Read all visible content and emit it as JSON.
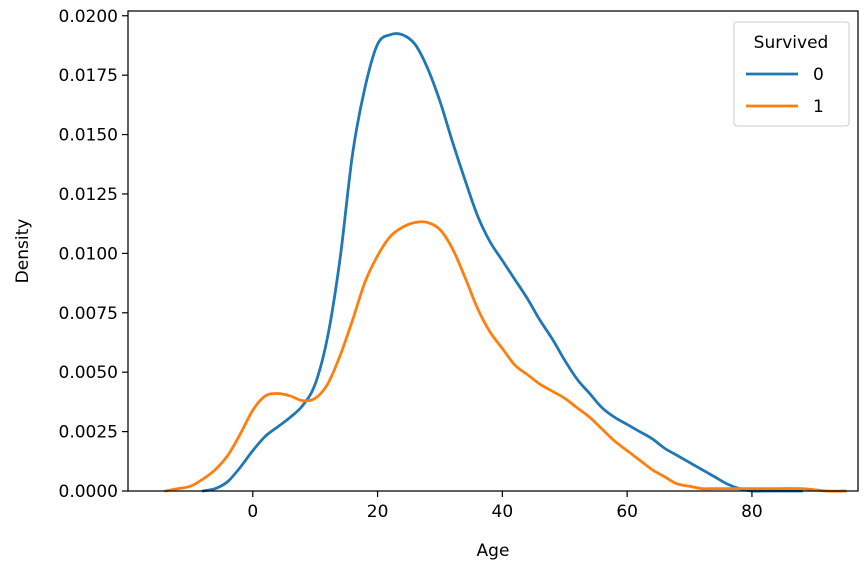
{
  "chart_data": {
    "type": "line",
    "title": "",
    "xlabel": "Age",
    "ylabel": "Density",
    "xlim": [
      -20,
      97
    ],
    "ylim": [
      0,
      0.0202
    ],
    "x_ticks": [
      0,
      20,
      40,
      60,
      80
    ],
    "x_tick_labels": [
      "0",
      "20",
      "40",
      "60",
      "80"
    ],
    "y_ticks": [
      0,
      0.0025,
      0.005,
      0.0075,
      0.01,
      0.0125,
      0.015,
      0.0175,
      0.02
    ],
    "y_tick_labels": [
      "0.0000",
      "0.0025",
      "0.0050",
      "0.0075",
      "0.0100",
      "0.0125",
      "0.0150",
      "0.0175",
      "0.0200"
    ],
    "grid": false,
    "legend": {
      "title": "Survived",
      "placement": "top-right"
    },
    "series": [
      {
        "name": "0",
        "color": "#1f77b4",
        "x": [
          -8,
          -6,
          -4,
          -2,
          0,
          2,
          4,
          6,
          8,
          10,
          12,
          14,
          16,
          18,
          20,
          22,
          24,
          26,
          28,
          30,
          32,
          34,
          36,
          38,
          40,
          42,
          44,
          46,
          48,
          50,
          52,
          54,
          56,
          58,
          60,
          62,
          64,
          66,
          68,
          70,
          72,
          74,
          76,
          78,
          80,
          82,
          85,
          88
        ],
        "values": [
          0.0,
          0.0001,
          0.0004,
          0.001,
          0.0017,
          0.0023,
          0.0027,
          0.0031,
          0.0036,
          0.0045,
          0.0065,
          0.0098,
          0.0142,
          0.017,
          0.0188,
          0.0192,
          0.0192,
          0.0188,
          0.0178,
          0.0164,
          0.0147,
          0.0131,
          0.0116,
          0.0105,
          0.0097,
          0.0089,
          0.0081,
          0.0072,
          0.0064,
          0.0055,
          0.0047,
          0.0041,
          0.0035,
          0.0031,
          0.0028,
          0.0025,
          0.0022,
          0.0018,
          0.0015,
          0.0012,
          0.0009,
          0.0006,
          0.0003,
          0.0001,
          0.0,
          0.0,
          0.0,
          0.0
        ]
      },
      {
        "name": "1",
        "color": "#ff7f0e",
        "x": [
          -14,
          -12,
          -10,
          -8,
          -6,
          -4,
          -2,
          0,
          2,
          4,
          6,
          8,
          10,
          12,
          14,
          16,
          18,
          20,
          22,
          24,
          26,
          28,
          30,
          32,
          34,
          36,
          38,
          40,
          42,
          44,
          46,
          48,
          50,
          52,
          54,
          56,
          58,
          60,
          62,
          64,
          66,
          68,
          70,
          72,
          74,
          76,
          78,
          80,
          84,
          88,
          92,
          95
        ],
        "values": [
          0.0,
          0.0001,
          0.0002,
          0.0005,
          0.0009,
          0.0015,
          0.0024,
          0.0034,
          0.004,
          0.0041,
          0.004,
          0.0038,
          0.0039,
          0.0045,
          0.0057,
          0.0072,
          0.0088,
          0.0099,
          0.0107,
          0.0111,
          0.0113,
          0.0113,
          0.011,
          0.0102,
          0.009,
          0.0077,
          0.0067,
          0.006,
          0.0053,
          0.0049,
          0.0045,
          0.0042,
          0.0039,
          0.0035,
          0.0031,
          0.0026,
          0.0021,
          0.0017,
          0.0013,
          0.0009,
          0.0006,
          0.0003,
          0.0002,
          0.0001,
          0.0001,
          0.0001,
          0.0001,
          0.0001,
          0.0001,
          0.0001,
          0.0,
          0.0
        ]
      }
    ]
  }
}
